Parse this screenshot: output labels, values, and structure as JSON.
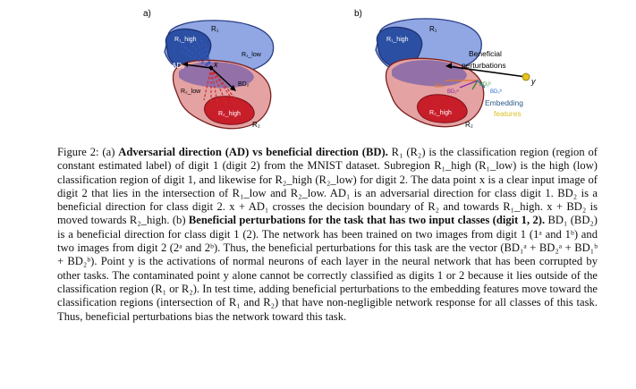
{
  "figure": {
    "panel_a": {
      "label": "a)",
      "r1": "R₁",
      "r1_high": "R₁_high",
      "r1_low": "R₁_low",
      "r2": "R₂",
      "r2_low": "R₂_low",
      "r2_high": "R₂_high",
      "ad": "AD₁",
      "bd": "BD₂",
      "x": "x"
    },
    "panel_b": {
      "label": "b)",
      "r1": "R₁",
      "r1_high": "R₁_high",
      "r2": "R₂",
      "r2_high": "R₂_high",
      "beneficial_1": "Beneficial",
      "beneficial_2": "perturbations",
      "bd2a": "BD₂ᵃ",
      "bd1a": "BD₁ᵃ",
      "bd1b": "BD₁ᵇ",
      "bd2b": "BD₂ᵇ",
      "y": "y",
      "embedding_1": "Embedding",
      "embedding_2": "features"
    }
  },
  "caption": {
    "fig_label": "Figure 2:",
    "part_a": "(a)",
    "title_a": "Adversarial direction (AD) vs beneficial direction (BD).",
    "s1": "R₁ (R₂) is the classification region (region of constant estimated label) of digit 1 (digit 2) from the MNIST dataset. Subregion",
    "s2": "R₁_high (R₁_low) is the high (low) classification region of digit 1, and likewise for R₂_high (R₂_low) for digit 2. The data point x is a clear input image of digit 2 that lies in the intersection of R₁_low and R₂_low. AD₁ is an adversarial direction for class digit 1. BD₂ is a beneficial direction for class digit 2. x + AD₁ crosses the decision boundary of R₂ and towards R₁_high. x + BD₂ is moved towards R₂_high.",
    "part_b": "(b)",
    "title_b": "Beneficial perturbations for the task that has two input classes (digit 1, 2).",
    "s3": "BD₁ (BD₂) is a beneficial direction for class digit 1 (2). The network has been trained on two images from digit 1 (1ᵃ and 1ᵇ) and two images from digit 2 (2ᵃ and 2ᵇ). Thus, the beneficial perturbations for this task are the vector (BD₁ᵃ + BD₂ᵃ + BD₁ᵇ + BD₂ᵇ). Point y is the activations of normal neurons of each layer in the neural network that has been corrupted by other tasks. The contaminated point y alone cannot be correctly classified as digits 1 or 2 because it lies outside of the classification region (R₁ or R₂). In test time, adding beneficial perturbations to the embedding features move toward the classification regions (intersection of R₁ and R₂) that have non-negligible network response for all classes of this task. Thus, beneficial perturbations bias the network toward this task."
  }
}
